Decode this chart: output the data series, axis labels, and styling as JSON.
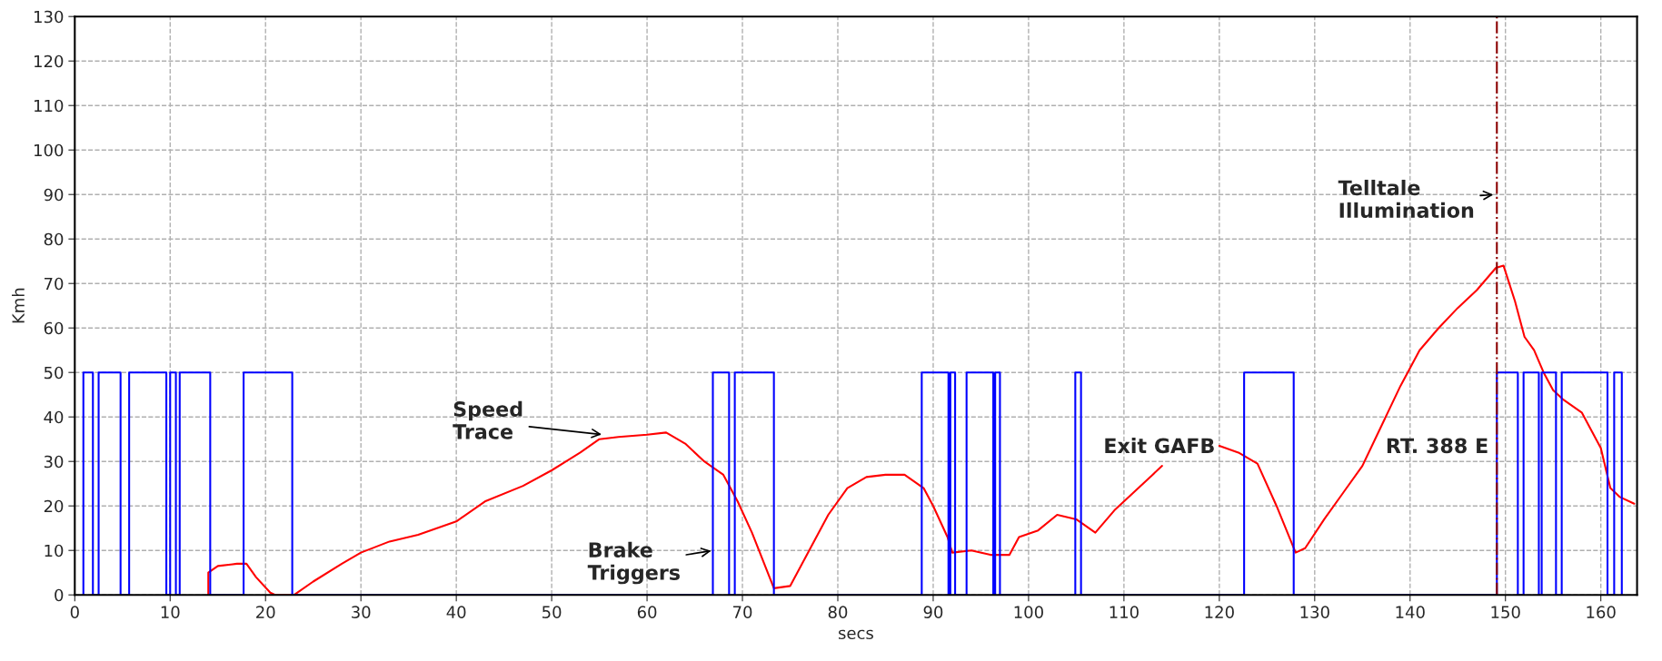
{
  "chart_data": {
    "type": "line",
    "xlabel": "secs",
    "ylabel": "Kmh",
    "xlim": [
      0,
      163.8
    ],
    "ylim": [
      0,
      130
    ],
    "xticks": [
      0,
      10,
      20,
      30,
      40,
      50,
      60,
      70,
      80,
      90,
      100,
      110,
      120,
      130,
      140,
      150,
      160
    ],
    "yticks": [
      0,
      10,
      20,
      30,
      40,
      50,
      60,
      70,
      80,
      90,
      100,
      110,
      120,
      130
    ],
    "grid": true,
    "legend": false,
    "marker": "none",
    "line_style": "solid",
    "series": [
      {
        "color": "#ff0000",
        "x": [
          14,
          14,
          15,
          17,
          18,
          19,
          20.5,
          21,
          23,
          25,
          28,
          30,
          33,
          36,
          40,
          43,
          47,
          50,
          53,
          55,
          57,
          60,
          62,
          64,
          66,
          68,
          69.5,
          71,
          73.3,
          75,
          77,
          79,
          81,
          83,
          85,
          87,
          89,
          90,
          91.5,
          92,
          94,
          96,
          98,
          99,
          101,
          103,
          105,
          107,
          109,
          111,
          113,
          114,
          117,
          120,
          122,
          124,
          126,
          128,
          129,
          131,
          133,
          135,
          137,
          139,
          141,
          143,
          145,
          147,
          149,
          149.8,
          151,
          152,
          153,
          154,
          155,
          156,
          158,
          160,
          161,
          162,
          163.5
        ],
        "values": [
          0,
          5,
          6.5,
          7,
          7,
          4,
          0.5,
          0,
          0,
          3,
          7,
          9.5,
          12,
          13.5,
          16.5,
          21,
          24.5,
          28,
          32,
          35,
          35.5,
          36,
          36.5,
          34,
          30,
          27,
          21,
          14,
          1.5,
          2,
          10,
          18,
          24,
          26.5,
          27,
          27,
          24,
          20,
          13,
          9.5,
          10,
          9,
          9,
          13,
          14.5,
          18,
          17,
          14,
          19,
          23,
          27,
          29,
          null,
          33.5,
          32,
          29.5,
          20,
          9.5,
          10.5,
          17,
          23,
          29,
          38,
          47,
          55,
          60,
          64.5,
          68.5,
          73.5,
          74,
          66,
          58,
          55,
          50,
          46,
          44,
          41,
          33,
          24,
          22,
          20.5
        ]
      },
      {
        "color": "#0000ff",
        "x": [
          0.9,
          0.9,
          1.9,
          1.9,
          2.5,
          2.5,
          4.8,
          4.8,
          5.7,
          5.7,
          9.6,
          9.6,
          10,
          10,
          10.6,
          10.6,
          11,
          11,
          14.2,
          14.2,
          17.7,
          17.7,
          22.8,
          22.8,
          66.9,
          66.9,
          68.6,
          68.6,
          69.2,
          69.2,
          73.3,
          73.3,
          88.8,
          88.8,
          91.6,
          91.6,
          91.8,
          91.8,
          92.3,
          92.3,
          93.5,
          93.5,
          96.3,
          96.3,
          96.5,
          96.5,
          97,
          97,
          104.9,
          104.9,
          105.5,
          105.5,
          122.6,
          122.6,
          127.8,
          127.8,
          149.1,
          149.1,
          151.3,
          151.3,
          151.9,
          151.9,
          153.5,
          153.5,
          153.8,
          153.8,
          155.3,
          155.3,
          155.9,
          155.9,
          160.7,
          160.7,
          161.4,
          161.4,
          162.2,
          162.2
        ],
        "values": [
          0,
          50,
          50,
          0,
          0,
          50,
          50,
          0,
          0,
          50,
          50,
          0,
          0,
          50,
          50,
          0,
          0,
          50,
          50,
          0,
          0,
          50,
          50,
          0,
          0,
          50,
          50,
          0,
          0,
          50,
          50,
          0,
          0,
          50,
          50,
          0,
          0,
          50,
          50,
          0,
          0,
          50,
          50,
          0,
          0,
          50,
          50,
          0,
          0,
          50,
          50,
          0,
          0,
          50,
          50,
          0,
          0,
          50,
          50,
          0,
          0,
          50,
          50,
          0,
          0,
          50,
          50,
          0,
          0,
          50,
          50,
          0,
          0,
          50,
          50,
          0
        ]
      }
    ],
    "ref_lines": [
      {
        "axis": "x",
        "value": 149.1,
        "color": "#8b0000",
        "line_style": "dashdot"
      }
    ],
    "annotations": [
      {
        "text": "Speed\nTrace",
        "x": 55.5,
        "y": 36
      },
      {
        "text": "Brake\nTriggers",
        "x": 67,
        "y": 10
      },
      "Exit GAFB",
      "RT. 388 E",
      {
        "text": "Telltale\nIllumination",
        "x": 149,
        "y": 90
      }
    ]
  }
}
